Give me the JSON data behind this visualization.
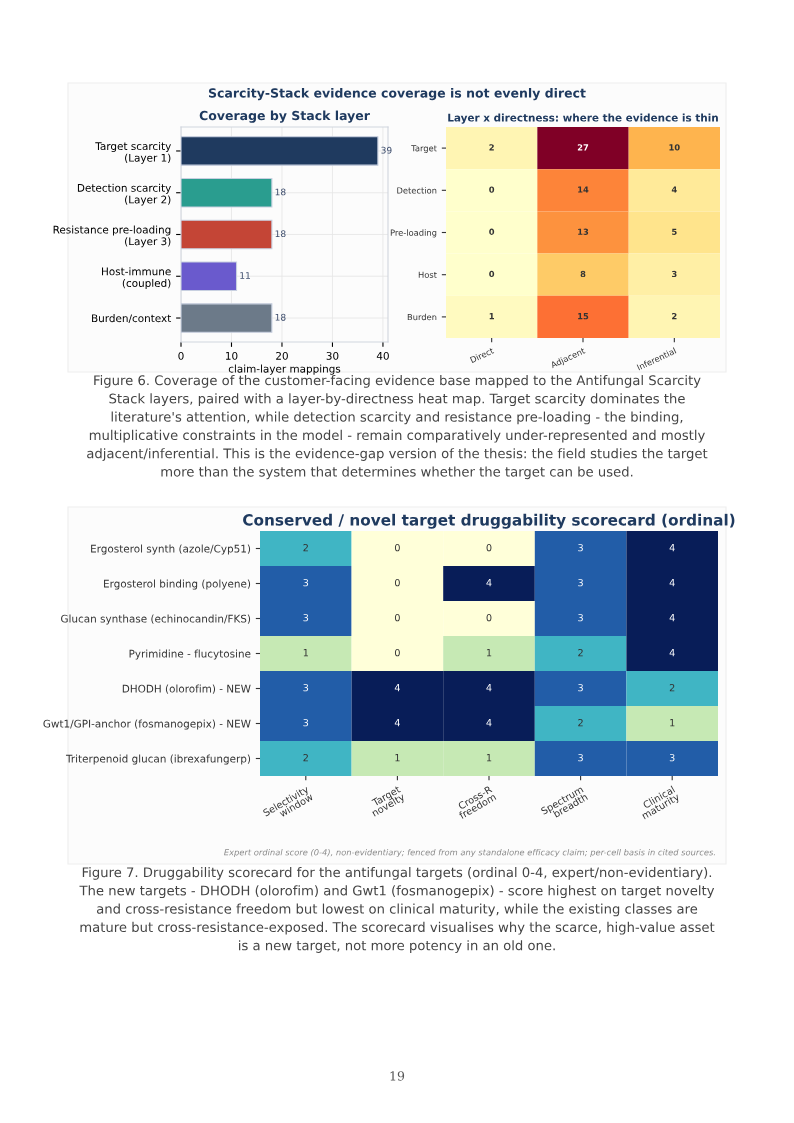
{
  "chart_data": [
    {
      "type": "bar",
      "orientation": "horizontal",
      "title": "Coverage by Stack layer",
      "xlabel": "claim-layer mappings",
      "categories": [
        "Target scarcity\n(Layer 1)",
        "Detection scarcity\n(Layer 2)",
        "Resistance pre-loading\n(Layer 3)",
        "Host-immune\n(coupled)",
        "Burden/context"
      ],
      "values": [
        39,
        18,
        18,
        11,
        18
      ],
      "colors": [
        "#1f3a5f",
        "#2a9d8f",
        "#c44536",
        "#6a5acd",
        "#6c7a89"
      ],
      "xlim": [
        0,
        41
      ],
      "xticks": [
        0,
        10,
        20,
        30,
        40
      ],
      "grid": true,
      "data_labels": true,
      "annotations": [
        "Scarcity-Stack evidence coverage is not evenly direct",
        "Figure 6. Coverage of the customer-facing evidence base mapped to the Antifungal Scarcity Stack layers, paired with a layer-by-directness heat map. Target scarcity dominates the literature's attention, while detection scarcity and resistance pre-loading - the binding, multiplicative constraints in the model - remain comparatively under-represented and mostly adjacent/inferential. This is the evidence-gap version of the thesis: the field studies the target more than the system that determines whether the target can be used."
      ]
    },
    {
      "type": "heatmap",
      "title": "Layer x directness: where the evidence is thin",
      "categories": [
        "Direct",
        "Adjacent",
        "Inferential"
      ],
      "y_categories": [
        "Target",
        "Detection",
        "Pre-loading",
        "Host",
        "Burden"
      ],
      "cells": [
        [
          2,
          27,
          10
        ],
        [
          0,
          14,
          4
        ],
        [
          0,
          13,
          5
        ],
        [
          0,
          8,
          3
        ],
        [
          1,
          15,
          2
        ]
      ],
      "data_labels": true
    },
    {
      "type": "heatmap",
      "title": "Conserved / novel target druggability scorecard (ordinal)",
      "categories": [
        "Selectivity\nwindow",
        "Target\nnovelty",
        "Cross-R\nfreedom",
        "Spectrum\nbreadth",
        "Clinical\nmaturity"
      ],
      "y_categories": [
        "Ergosterol synth (azole/Cyp51)",
        "Ergosterol binding (polyene)",
        "Glucan synthase (echinocandin/FKS)",
        "Pyrimidine - flucytosine",
        "DHODH (olorofim) - NEW",
        "Gwt1/GPI-anchor (fosmanogepix) - NEW",
        "Triterpenoid glucan (ibrexafungerp)"
      ],
      "cells": [
        [
          2,
          0,
          0,
          3,
          4
        ],
        [
          3,
          0,
          4,
          3,
          4
        ],
        [
          3,
          0,
          0,
          3,
          4
        ],
        [
          1,
          0,
          1,
          2,
          4
        ],
        [
          3,
          4,
          4,
          3,
          2
        ],
        [
          3,
          4,
          4,
          2,
          1
        ],
        [
          2,
          1,
          1,
          3,
          3
        ]
      ],
      "data_labels": true,
      "annotations": [
        "Expert ordinal score (0-4), non-evidentiary; fenced from any standalone efficacy claim; per-cell basis in cited sources.",
        "Figure 7. Druggability scorecard for the antifungal targets (ordinal 0-4, expert/non-evidentiary). The new targets - DHODH (olorofim) and Gwt1 (fosmanogepix) - score highest on target novelty and cross-resistance freedom but lowest on clinical maturity, while the existing classes are mature but cross-resistance-exposed. The scorecard visualises why the scarce, high-value asset is a new target, not more potency in an old one.",
        "19"
      ]
    }
  ]
}
